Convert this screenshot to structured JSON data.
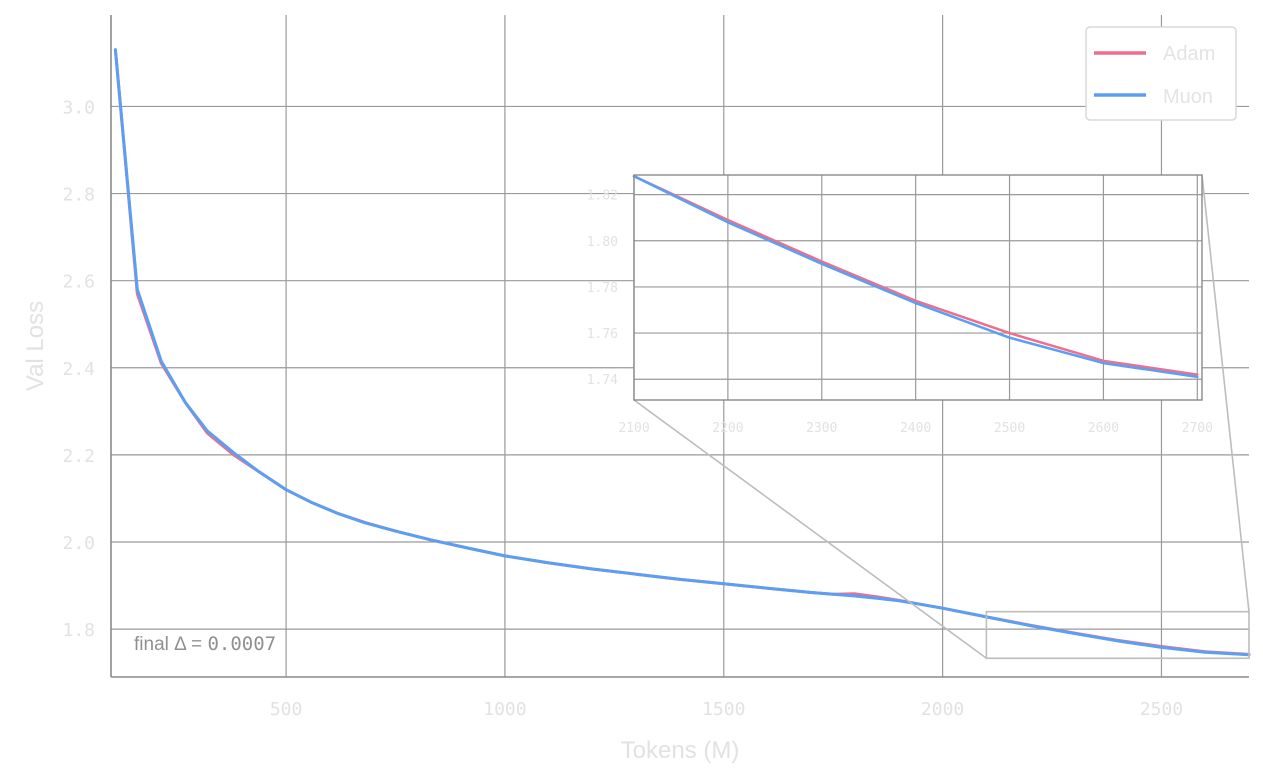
{
  "chart_data": {
    "type": "line",
    "title": "",
    "xlabel": "Tokens (M)",
    "ylabel": "Val Loss",
    "xlim": [
      100,
      2700
    ],
    "ylim": [
      1.69,
      3.21
    ],
    "xticks": [
      500,
      1000,
      1500,
      2000,
      2500
    ],
    "yticks": [
      1.8,
      2.0,
      2.2,
      2.4,
      2.6,
      2.8,
      3.0
    ],
    "grid": true,
    "legend_position": "top-right",
    "annotation": {
      "prefix": "final Δ = ",
      "value": "0.0007"
    },
    "colors": {
      "Adam": "#ee6e8e",
      "Muon": "#5aa0f2"
    },
    "series": [
      {
        "name": "Adam",
        "x": [
          110,
          160,
          215,
          270,
          320,
          380,
          440,
          500,
          560,
          620,
          680,
          750,
          830,
          920,
          1000,
          1100,
          1200,
          1300,
          1400,
          1500,
          1600,
          1700,
          1750,
          1800,
          1850,
          1900,
          1950,
          2000,
          2100,
          2200,
          2300,
          2400,
          2500,
          2600,
          2700
        ],
        "y": [
          3.13,
          2.57,
          2.41,
          2.32,
          2.25,
          2.2,
          2.16,
          2.12,
          2.09,
          2.065,
          2.045,
          2.025,
          2.005,
          1.985,
          1.968,
          1.952,
          1.938,
          1.926,
          1.914,
          1.904,
          1.894,
          1.884,
          1.88,
          1.881,
          1.874,
          1.866,
          1.857,
          1.848,
          1.828,
          1.809,
          1.791,
          1.774,
          1.76,
          1.748,
          1.742
        ]
      },
      {
        "name": "Muon",
        "x": [
          110,
          160,
          215,
          270,
          320,
          380,
          440,
          500,
          560,
          620,
          680,
          750,
          830,
          920,
          1000,
          1100,
          1200,
          1300,
          1400,
          1500,
          1600,
          1700,
          1750,
          1800,
          1850,
          1900,
          1950,
          2000,
          2100,
          2200,
          2300,
          2400,
          2500,
          2600,
          2700
        ],
        "y": [
          3.13,
          2.58,
          2.415,
          2.32,
          2.255,
          2.205,
          2.16,
          2.12,
          2.09,
          2.065,
          2.044,
          2.025,
          2.005,
          1.985,
          1.968,
          1.952,
          1.938,
          1.926,
          1.914,
          1.904,
          1.894,
          1.884,
          1.88,
          1.876,
          1.871,
          1.865,
          1.857,
          1.848,
          1.828,
          1.808,
          1.79,
          1.773,
          1.758,
          1.747,
          1.741
        ]
      }
    ],
    "inset": {
      "xlim": [
        2100,
        2705
      ],
      "ylim": [
        1.731,
        1.8285
      ],
      "xticks": [
        2100,
        2200,
        2300,
        2400,
        2500,
        2600,
        2700
      ],
      "yticks": [
        1.74,
        1.76,
        1.78,
        1.8,
        1.82
      ],
      "ytick_labels": [
        "1.74",
        "1.76",
        "1.78",
        "1.80",
        "1.82"
      ],
      "zoom_box": {
        "x": [
          2100,
          2700
        ],
        "y": [
          1.733,
          1.84
        ]
      }
    }
  }
}
